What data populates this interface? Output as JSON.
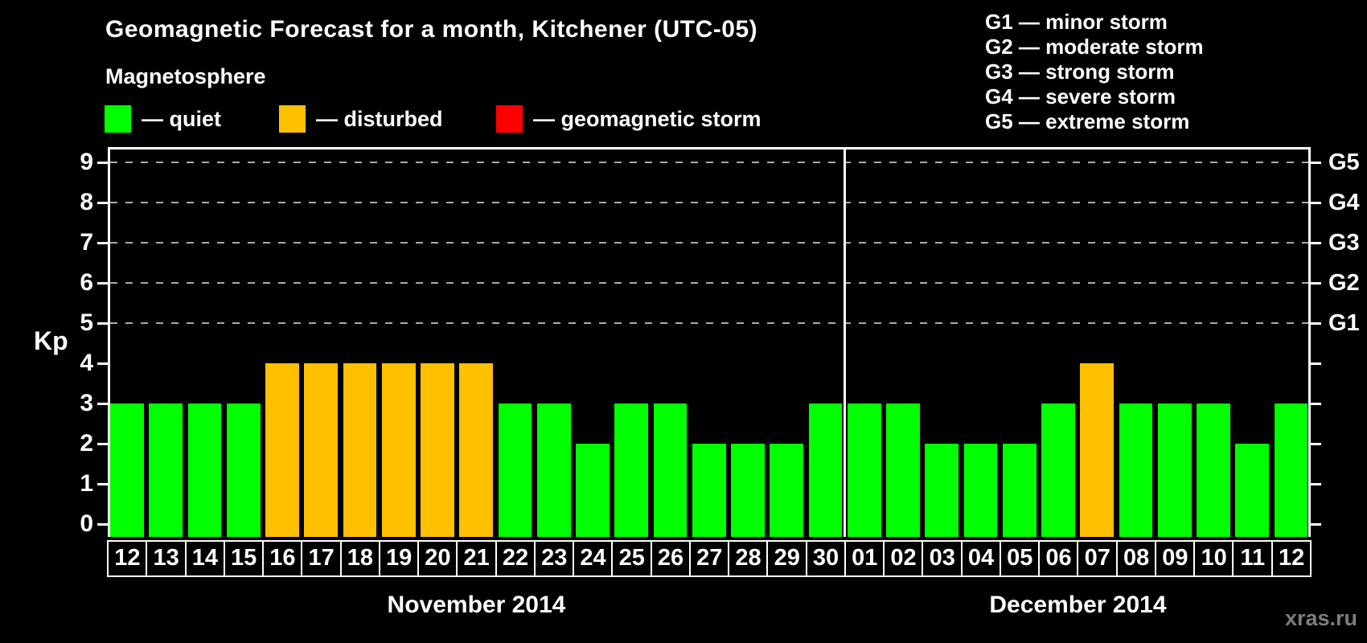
{
  "title": "Geomagnetic Forecast for a month, Kitchener (UTC-05)",
  "subtitle": "Magnetosphere",
  "legend": {
    "items": [
      {
        "key": "quiet",
        "label": "— quiet",
        "color": "#00ff00"
      },
      {
        "key": "disturbed",
        "label": "— disturbed",
        "color": "#ffc000"
      },
      {
        "key": "storm",
        "label": "— geomagnetic storm",
        "color": "#ff0000"
      }
    ]
  },
  "storm_legend": {
    "items": [
      "G1 — minor storm",
      "G2 — moderate storm",
      "G3 — strong storm",
      "G4 — severe storm",
      "G5 — extreme storm"
    ]
  },
  "watermark": "xras.ru",
  "chart_data": {
    "type": "bar",
    "title": "Geomagnetic Forecast for a month, Kitchener (UTC-05)",
    "ylabel": "Kp",
    "ylim": [
      0,
      9
    ],
    "yticks": [
      0,
      1,
      2,
      3,
      4,
      5,
      6,
      7,
      8,
      9
    ],
    "gridlines_at": [
      5,
      6,
      7,
      8,
      9
    ],
    "grid": "dashed-on-storm-levels-only",
    "legend_position": "top",
    "right_axis_labels": [
      {
        "label": "G1",
        "kp": 5
      },
      {
        "label": "G2",
        "kp": 6
      },
      {
        "label": "G3",
        "kp": 7
      },
      {
        "label": "G4",
        "kp": 8
      },
      {
        "label": "G5",
        "kp": 9
      }
    ],
    "colors": {
      "quiet": "#00ff00",
      "disturbed": "#ffc000",
      "storm": "#ff0000"
    },
    "months": [
      {
        "label": "November 2014",
        "days": [
          {
            "date": "12",
            "kp": 3,
            "status": "quiet"
          },
          {
            "date": "13",
            "kp": 3,
            "status": "quiet"
          },
          {
            "date": "14",
            "kp": 3,
            "status": "quiet"
          },
          {
            "date": "15",
            "kp": 3,
            "status": "quiet"
          },
          {
            "date": "16",
            "kp": 4,
            "status": "disturbed"
          },
          {
            "date": "17",
            "kp": 4,
            "status": "disturbed"
          },
          {
            "date": "18",
            "kp": 4,
            "status": "disturbed"
          },
          {
            "date": "19",
            "kp": 4,
            "status": "disturbed"
          },
          {
            "date": "20",
            "kp": 4,
            "status": "disturbed"
          },
          {
            "date": "21",
            "kp": 4,
            "status": "disturbed"
          },
          {
            "date": "22",
            "kp": 3,
            "status": "quiet"
          },
          {
            "date": "23",
            "kp": 3,
            "status": "quiet"
          },
          {
            "date": "24",
            "kp": 2,
            "status": "quiet"
          },
          {
            "date": "25",
            "kp": 3,
            "status": "quiet"
          },
          {
            "date": "26",
            "kp": 3,
            "status": "quiet"
          },
          {
            "date": "27",
            "kp": 2,
            "status": "quiet"
          },
          {
            "date": "28",
            "kp": 2,
            "status": "quiet"
          },
          {
            "date": "29",
            "kp": 2,
            "status": "quiet"
          },
          {
            "date": "30",
            "kp": 3,
            "status": "quiet"
          }
        ]
      },
      {
        "label": "December 2014",
        "days": [
          {
            "date": "01",
            "kp": 3,
            "status": "quiet"
          },
          {
            "date": "02",
            "kp": 3,
            "status": "quiet"
          },
          {
            "date": "03",
            "kp": 2,
            "status": "quiet"
          },
          {
            "date": "04",
            "kp": 2,
            "status": "quiet"
          },
          {
            "date": "05",
            "kp": 2,
            "status": "quiet"
          },
          {
            "date": "06",
            "kp": 3,
            "status": "quiet"
          },
          {
            "date": "07",
            "kp": 4,
            "status": "disturbed"
          },
          {
            "date": "08",
            "kp": 3,
            "status": "quiet"
          },
          {
            "date": "09",
            "kp": 3,
            "status": "quiet"
          },
          {
            "date": "10",
            "kp": 3,
            "status": "quiet"
          },
          {
            "date": "11",
            "kp": 2,
            "status": "quiet"
          },
          {
            "date": "12",
            "kp": 3,
            "status": "quiet"
          }
        ]
      }
    ]
  }
}
